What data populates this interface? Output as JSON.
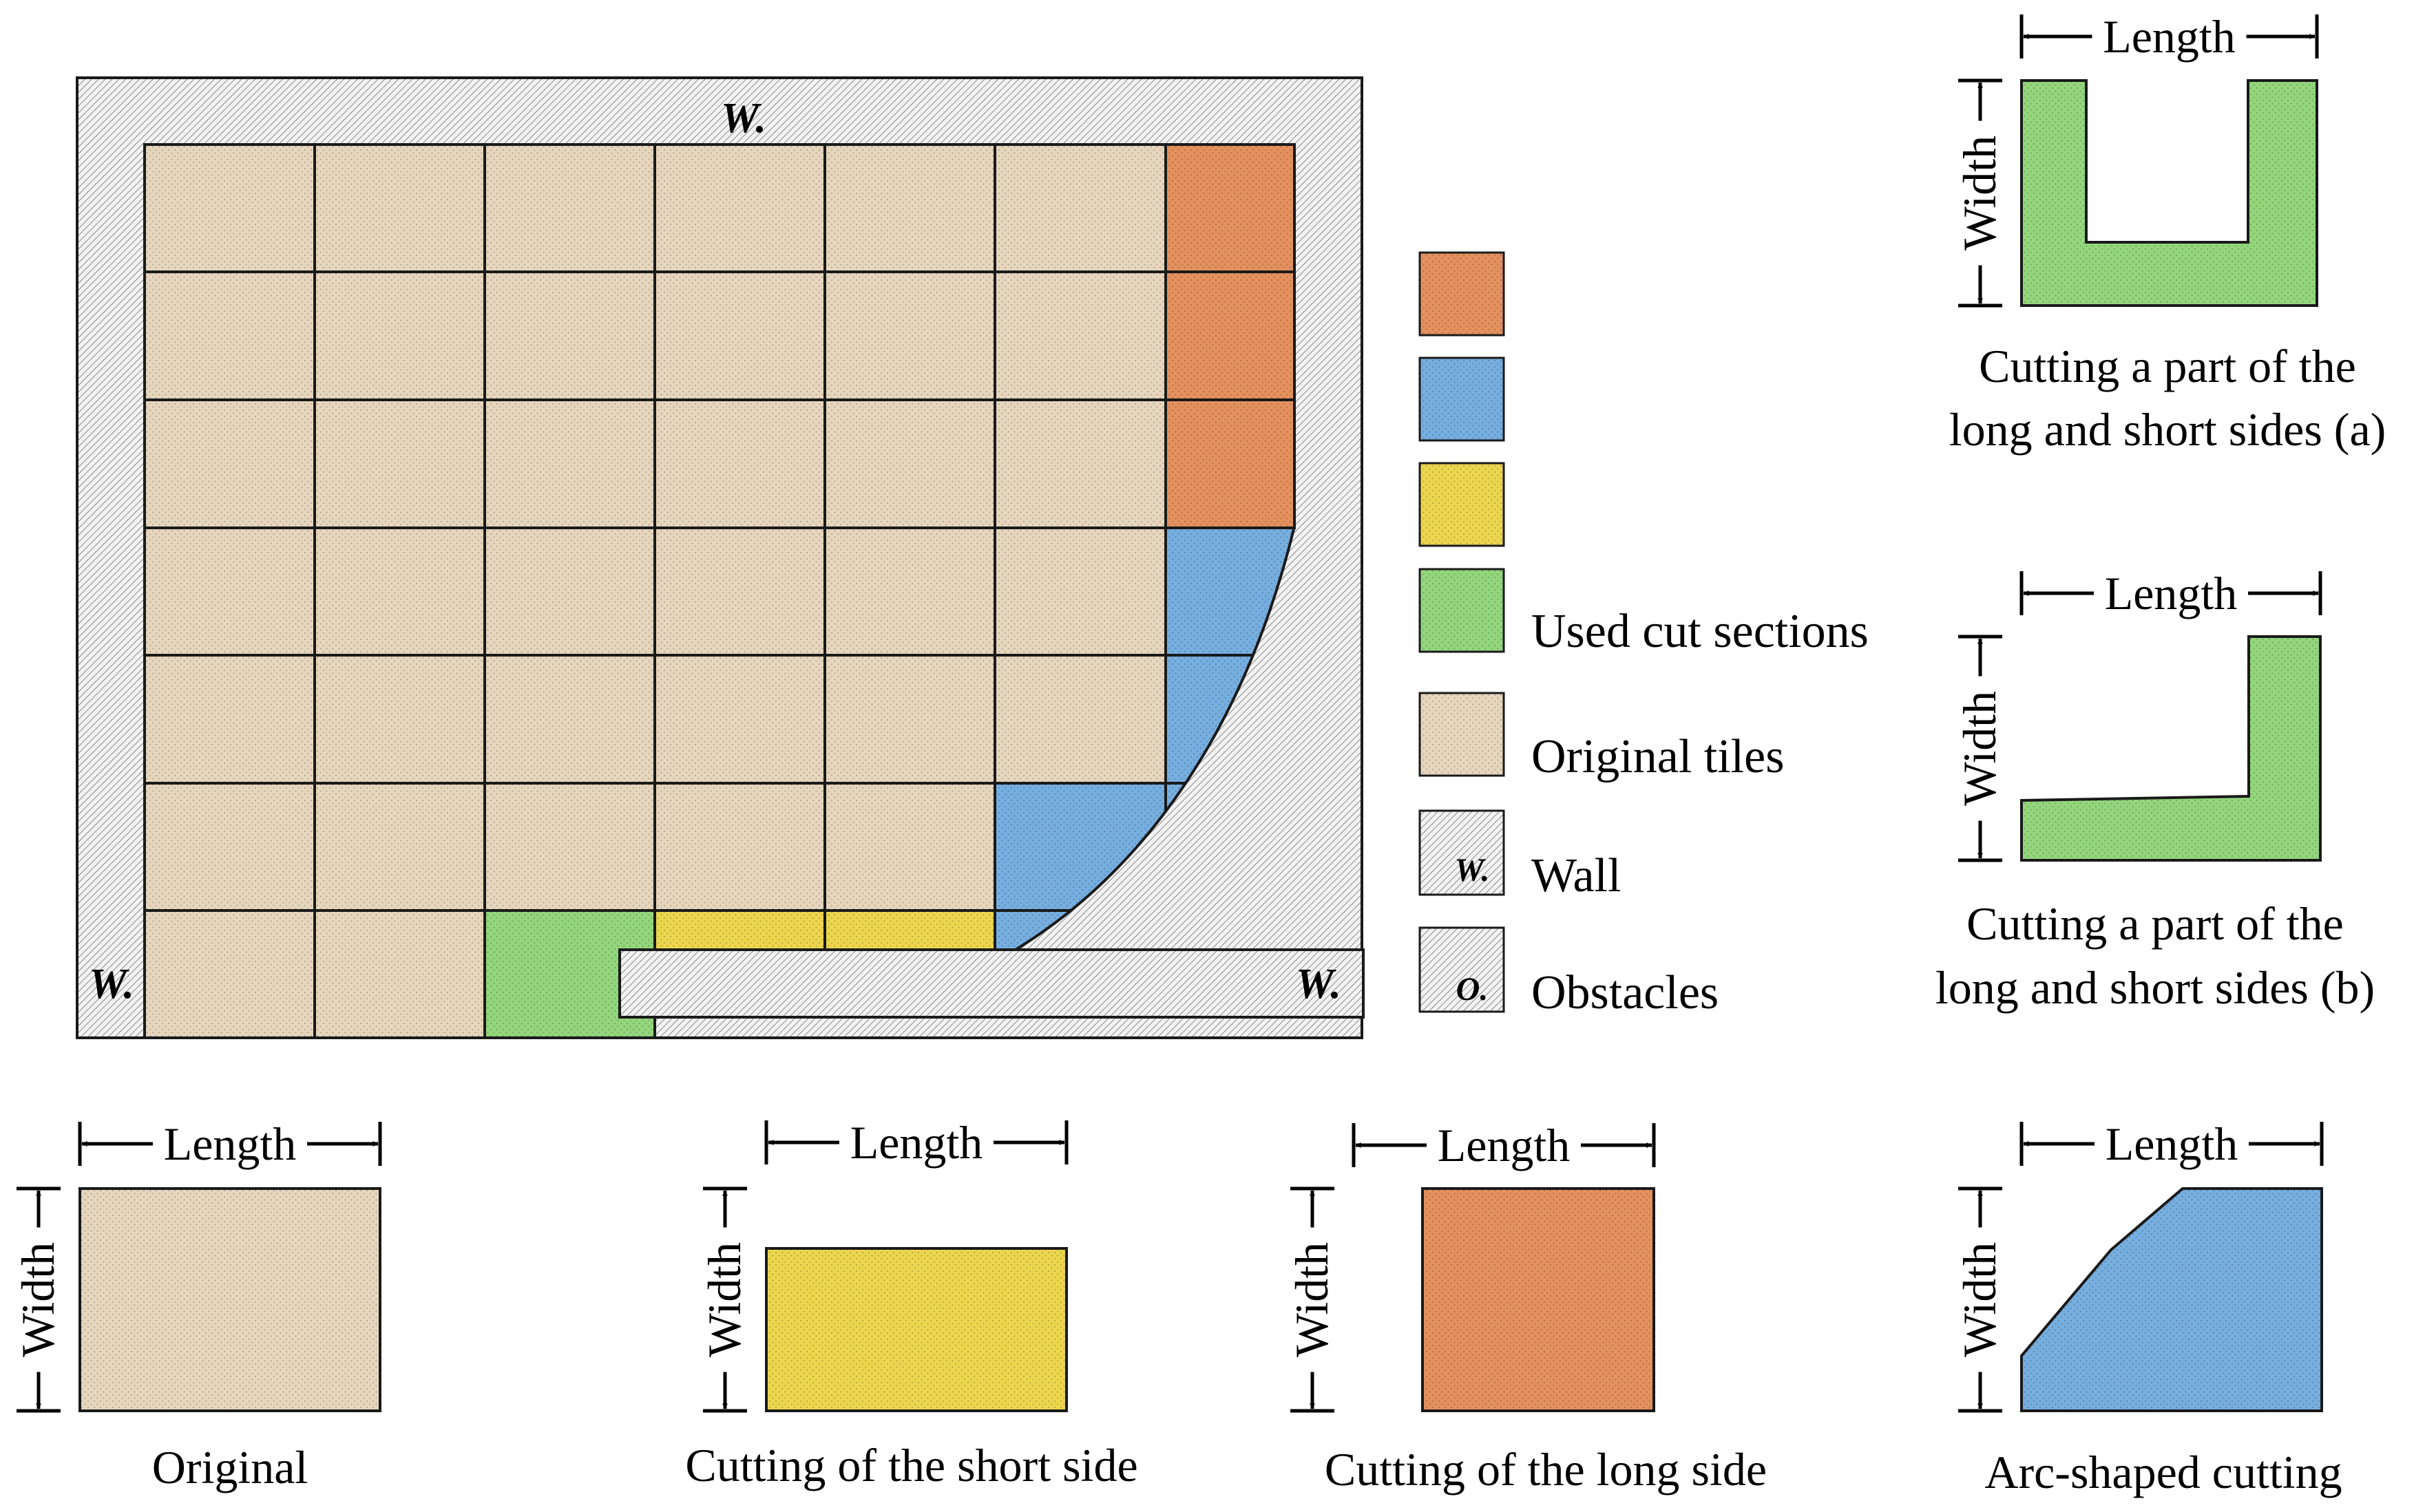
{
  "colors": {
    "original": "#e6d6bd",
    "long_side_cut": "#e4915e",
    "arc_cut": "#76aee0",
    "short_side_cut": "#ecd64e",
    "used_cut": "#93d67c",
    "wall": "#ececec",
    "outline": "#1a1a1a"
  },
  "plan": {
    "wall_label_top": "W.",
    "wall_label_left": "W.",
    "wall_label_right": "W."
  },
  "legend": {
    "used_label": "Used cut sections",
    "original_label": "Original tiles",
    "wall_label": "Wall",
    "obstacles_label": "Obstacles",
    "wall_glyph": "W.",
    "obstacle_glyph": "O."
  },
  "shapes": {
    "dimension_length": "Length",
    "dimension_width": "Width",
    "caption_cut_a_line1": "Cutting a part of the",
    "caption_cut_a_line2": "long and short sides (a)",
    "caption_cut_b_line1": "Cutting a part of the",
    "caption_cut_b_line2": "long and short sides (b)",
    "caption_original": "Original",
    "caption_short": "Cutting of the short side",
    "caption_long": "Cutting of the long side",
    "caption_arc": "Arc-shaped cutting"
  }
}
